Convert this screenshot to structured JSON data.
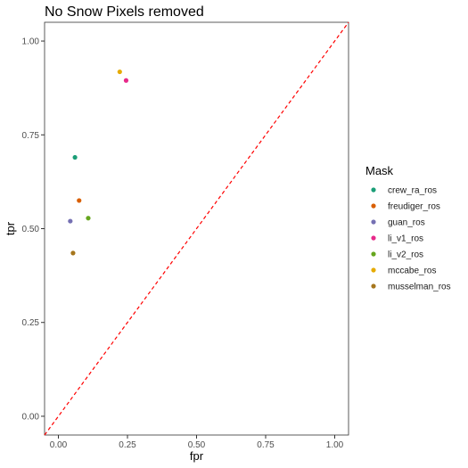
{
  "chart_data": {
    "type": "scatter",
    "title": "No Snow Pixels removed",
    "xlabel": "fpr",
    "ylabel": "tpr",
    "xlim": [
      -0.05,
      1.05
    ],
    "ylim": [
      -0.05,
      1.05
    ],
    "xticks": [
      0.0,
      0.25,
      0.5,
      0.75,
      1.0
    ],
    "yticks": [
      0.0,
      0.25,
      0.5,
      0.75,
      1.0
    ],
    "xtick_labels": [
      "0.00",
      "0.25",
      "0.50",
      "0.75",
      "1.00"
    ],
    "ytick_labels": [
      "0.00",
      "0.25",
      "0.50",
      "0.75",
      "1.00"
    ],
    "grid": false,
    "legend": {
      "title": "Mask",
      "position": "right"
    },
    "reference_line": {
      "from": [
        0,
        0
      ],
      "to": [
        1,
        1
      ],
      "style": "dashed",
      "color": "#ff0000"
    },
    "series": [
      {
        "name": "crew_ra_ros",
        "color": "#1b9e77",
        "x": 0.06,
        "y": 0.69
      },
      {
        "name": "freudiger_ros",
        "color": "#d95f02",
        "x": 0.075,
        "y": 0.575
      },
      {
        "name": "guan_ros",
        "color": "#7570b3",
        "x": 0.043,
        "y": 0.52
      },
      {
        "name": "li_v1_ros",
        "color": "#e7298a",
        "x": 0.245,
        "y": 0.895
      },
      {
        "name": "li_v2_ros",
        "color": "#66a61e",
        "x": 0.108,
        "y": 0.528
      },
      {
        "name": "mccabe_ros",
        "color": "#e6ab02",
        "x": 0.222,
        "y": 0.918
      },
      {
        "name": "musselman_ros",
        "color": "#a6761d",
        "x": 0.053,
        "y": 0.435
      }
    ]
  }
}
